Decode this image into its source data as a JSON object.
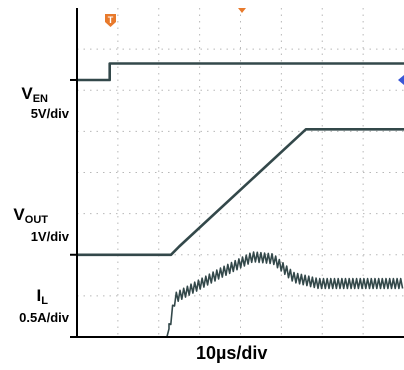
{
  "chart_data": {
    "type": "line",
    "title": "",
    "timebase": "10µs/div",
    "xlabel": "10µs/div",
    "x_divisions": 8,
    "y_divisions": 8,
    "grid": true,
    "xlim": [
      0,
      8
    ],
    "ylim": [
      0,
      8
    ],
    "channels": [
      {
        "name_main": "V",
        "name_sub": "EN",
        "scale": "5V/div",
        "color": "#33484a",
        "x": [
          0,
          0.8,
          0.8,
          8
        ],
        "y": [
          6.25,
          6.25,
          6.65,
          6.65
        ]
      },
      {
        "name_main": "V",
        "name_sub": "OUT",
        "scale": "1V/div",
        "color": "#33484a",
        "x": [
          0,
          2.3,
          2.5,
          5.6,
          8
        ],
        "y": [
          2.0,
          2.0,
          2.2,
          5.05,
          5.05
        ]
      },
      {
        "name_main": "I",
        "name_sub": "L",
        "scale": "0.5A/div",
        "color": "#33484a",
        "x": [
          0,
          2.2,
          2.25,
          2.4,
          3.5,
          4.3,
          4.8,
          5.3,
          5.9,
          8
        ],
        "y": [
          0.0,
          0.0,
          0.2,
          0.95,
          1.55,
          1.95,
          1.9,
          1.45,
          1.3,
          1.3
        ],
        "ripple_start": 2.25,
        "ripple_amplitude": 0.12,
        "ripple_period": 0.09
      }
    ],
    "markers": [
      "T"
    ]
  },
  "icons": {
    "trigger": "trigger-marker-icon",
    "cursor": "cursor-marker-icon",
    "right": "right-marker-icon"
  },
  "colors": {
    "trace": "#33484a",
    "grid": "#b8b8b8",
    "trigger": "#e87a2c",
    "cursor": "#3a57d6"
  }
}
